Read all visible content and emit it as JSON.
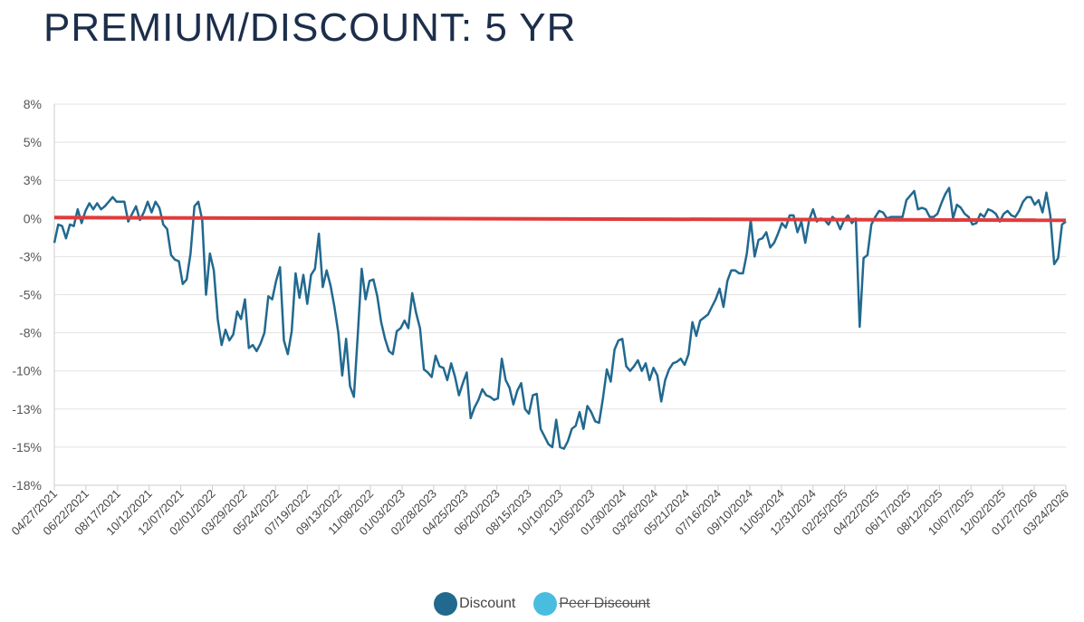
{
  "chart_data": {
    "type": "line",
    "title": "PREMIUM/DISCOUNT: 5 YR",
    "yticks": [
      "8%",
      "5%",
      "3%",
      "0%",
      "-3%",
      "-5%",
      "-8%",
      "-10%",
      "-13%",
      "-15%",
      "-18%"
    ],
    "ylim": [
      -17.5,
      7.5
    ],
    "xticks": [
      "04/27/2021",
      "06/22/2021",
      "08/17/2021",
      "10/12/2021",
      "12/07/2021",
      "02/01/2022",
      "03/29/2022",
      "05/24/2022",
      "07/19/2022",
      "09/13/2022",
      "11/08/2022",
      "01/03/2023",
      "02/28/2023",
      "04/25/2023",
      "06/20/2023",
      "08/15/2023",
      "10/10/2023",
      "12/05/2023",
      "01/30/2024",
      "03/26/2024",
      "05/21/2024",
      "07/16/2024",
      "09/10/2024",
      "11/05/2024",
      "12/31/2024",
      "02/25/2025",
      "04/22/2025",
      "06/17/2025",
      "08/12/2025",
      "10/07/2025",
      "12/02/2025",
      "01/27/2026",
      "03/24/2026"
    ],
    "reference_line": {
      "value": 0,
      "color": "#e03b3b"
    },
    "series": [
      {
        "name": "Discount",
        "color": "#21698f",
        "visible": true,
        "points": [
          [
            0,
            -1.6
          ],
          [
            0.1,
            -0.4
          ],
          [
            0.2,
            -0.5
          ],
          [
            0.3,
            -1.3
          ],
          [
            0.4,
            -0.4
          ],
          [
            0.5,
            -0.5
          ],
          [
            0.6,
            0.6
          ],
          [
            0.7,
            -0.3
          ],
          [
            0.8,
            0.5
          ],
          [
            0.9,
            1.0
          ],
          [
            1.0,
            0.6
          ],
          [
            1.1,
            1.0
          ],
          [
            1.2,
            0.6
          ],
          [
            1.3,
            0.8
          ],
          [
            1.4,
            1.1
          ],
          [
            1.5,
            1.4
          ],
          [
            1.6,
            1.1
          ],
          [
            1.7,
            1.1
          ],
          [
            1.8,
            1.1
          ],
          [
            1.9,
            -0.2
          ],
          [
            2.0,
            0.3
          ],
          [
            2.1,
            0.8
          ],
          [
            2.2,
            -0.1
          ],
          [
            2.3,
            0.4
          ],
          [
            2.4,
            1.1
          ],
          [
            2.5,
            0.4
          ],
          [
            2.6,
            1.1
          ],
          [
            2.7,
            0.7
          ],
          [
            2.8,
            -0.4
          ],
          [
            2.9,
            -0.7
          ],
          [
            3.0,
            -2.4
          ],
          [
            3.1,
            -2.7
          ],
          [
            3.2,
            -2.8
          ],
          [
            3.3,
            -4.3
          ],
          [
            3.4,
            -4.0
          ],
          [
            3.5,
            -2.3
          ],
          [
            3.6,
            0.8
          ],
          [
            3.7,
            1.1
          ],
          [
            3.8,
            -0.1
          ],
          [
            3.9,
            -5.0
          ],
          [
            4.0,
            -2.3
          ],
          [
            4.1,
            -3.4
          ],
          [
            4.2,
            -6.6
          ],
          [
            4.3,
            -8.3
          ],
          [
            4.4,
            -7.3
          ],
          [
            4.5,
            -8.0
          ],
          [
            4.6,
            -7.6
          ],
          [
            4.7,
            -6.1
          ],
          [
            4.8,
            -6.6
          ],
          [
            4.9,
            -5.3
          ],
          [
            5.0,
            -8.5
          ],
          [
            5.1,
            -8.3
          ],
          [
            5.2,
            -8.7
          ],
          [
            5.3,
            -8.2
          ],
          [
            5.4,
            -7.5
          ],
          [
            5.5,
            -5.1
          ],
          [
            5.6,
            -5.3
          ],
          [
            5.7,
            -4.1
          ],
          [
            5.8,
            -3.2
          ],
          [
            5.9,
            -8.0
          ],
          [
            6.0,
            -8.9
          ],
          [
            6.1,
            -7.4
          ],
          [
            6.2,
            -3.6
          ],
          [
            6.3,
            -5.2
          ],
          [
            6.4,
            -3.7
          ],
          [
            6.5,
            -5.6
          ],
          [
            6.6,
            -3.7
          ],
          [
            6.7,
            -3.3
          ],
          [
            6.8,
            -1.0
          ],
          [
            6.9,
            -4.5
          ],
          [
            7.0,
            -3.4
          ],
          [
            7.1,
            -4.4
          ],
          [
            7.2,
            -5.8
          ],
          [
            7.3,
            -7.5
          ],
          [
            7.4,
            -10.3
          ],
          [
            7.5,
            -7.9
          ],
          [
            7.6,
            -11.0
          ],
          [
            7.7,
            -11.7
          ],
          [
            7.8,
            -7.6
          ],
          [
            7.9,
            -3.3
          ],
          [
            8.0,
            -5.3
          ],
          [
            8.1,
            -4.1
          ],
          [
            8.2,
            -4.0
          ],
          [
            8.3,
            -5.1
          ],
          [
            8.4,
            -6.8
          ],
          [
            8.5,
            -7.9
          ],
          [
            8.6,
            -8.7
          ],
          [
            8.7,
            -8.9
          ],
          [
            8.8,
            -7.4
          ],
          [
            8.9,
            -7.2
          ],
          [
            9.0,
            -6.7
          ],
          [
            9.1,
            -7.2
          ],
          [
            9.2,
            -4.9
          ],
          [
            9.3,
            -6.2
          ],
          [
            9.4,
            -7.2
          ],
          [
            9.5,
            -9.9
          ],
          [
            9.6,
            -10.1
          ],
          [
            9.7,
            -10.4
          ],
          [
            9.8,
            -9.0
          ],
          [
            9.9,
            -9.7
          ],
          [
            10.0,
            -9.8
          ],
          [
            10.1,
            -10.6
          ],
          [
            10.2,
            -9.5
          ],
          [
            10.3,
            -10.4
          ],
          [
            10.4,
            -11.6
          ],
          [
            10.5,
            -10.8
          ],
          [
            10.6,
            -10.1
          ],
          [
            10.7,
            -13.1
          ],
          [
            10.8,
            -12.4
          ],
          [
            10.9,
            -11.9
          ],
          [
            11.0,
            -11.2
          ],
          [
            11.1,
            -11.6
          ],
          [
            11.2,
            -11.7
          ],
          [
            11.3,
            -11.9
          ],
          [
            11.4,
            -11.8
          ],
          [
            11.5,
            -9.2
          ],
          [
            11.6,
            -10.6
          ],
          [
            11.7,
            -11.1
          ],
          [
            11.8,
            -12.2
          ],
          [
            11.9,
            -11.3
          ],
          [
            12.0,
            -10.8
          ],
          [
            12.1,
            -12.5
          ],
          [
            12.2,
            -12.8
          ],
          [
            12.3,
            -11.6
          ],
          [
            12.4,
            -11.5
          ],
          [
            12.5,
            -13.8
          ],
          [
            12.6,
            -14.3
          ],
          [
            12.7,
            -14.8
          ],
          [
            12.8,
            -15.0
          ],
          [
            12.9,
            -13.2
          ],
          [
            13.0,
            -15.0
          ],
          [
            13.1,
            -15.1
          ],
          [
            13.2,
            -14.6
          ],
          [
            13.3,
            -13.8
          ],
          [
            13.4,
            -13.6
          ],
          [
            13.5,
            -12.7
          ],
          [
            13.6,
            -13.8
          ],
          [
            13.7,
            -12.3
          ],
          [
            13.8,
            -12.7
          ],
          [
            13.9,
            -13.3
          ],
          [
            14.0,
            -13.4
          ],
          [
            14.1,
            -11.8
          ],
          [
            14.2,
            -9.9
          ],
          [
            14.3,
            -10.7
          ],
          [
            14.4,
            -8.6
          ],
          [
            14.5,
            -8.0
          ],
          [
            14.6,
            -7.9
          ],
          [
            14.7,
            -9.7
          ],
          [
            14.8,
            -10.0
          ],
          [
            14.9,
            -9.7
          ],
          [
            15.0,
            -9.3
          ],
          [
            15.1,
            -10.0
          ],
          [
            15.2,
            -9.5
          ],
          [
            15.3,
            -10.6
          ],
          [
            15.4,
            -9.8
          ],
          [
            15.5,
            -10.3
          ],
          [
            15.6,
            -12.0
          ],
          [
            15.7,
            -10.6
          ],
          [
            15.8,
            -9.9
          ],
          [
            15.9,
            -9.5
          ],
          [
            16.0,
            -9.4
          ],
          [
            16.1,
            -9.2
          ],
          [
            16.2,
            -9.6
          ],
          [
            16.3,
            -8.9
          ],
          [
            16.4,
            -6.8
          ],
          [
            16.5,
            -7.7
          ],
          [
            16.6,
            -6.7
          ],
          [
            16.7,
            -6.5
          ],
          [
            16.8,
            -6.3
          ],
          [
            16.9,
            -5.8
          ],
          [
            17.0,
            -5.3
          ],
          [
            17.1,
            -4.6
          ],
          [
            17.2,
            -5.8
          ],
          [
            17.3,
            -4.1
          ],
          [
            17.4,
            -3.4
          ],
          [
            17.5,
            -3.4
          ],
          [
            17.6,
            -3.6
          ],
          [
            17.7,
            -3.6
          ],
          [
            17.8,
            -2.3
          ],
          [
            17.9,
            -0.1
          ],
          [
            18.0,
            -2.5
          ],
          [
            18.1,
            -1.4
          ],
          [
            18.2,
            -1.3
          ],
          [
            18.3,
            -0.9
          ],
          [
            18.4,
            -1.9
          ],
          [
            18.5,
            -1.6
          ],
          [
            18.6,
            -1.0
          ],
          [
            18.7,
            -0.3
          ],
          [
            18.8,
            -0.6
          ],
          [
            18.9,
            0.2
          ],
          [
            19.0,
            0.2
          ],
          [
            19.1,
            -0.9
          ],
          [
            19.2,
            -0.2
          ],
          [
            19.3,
            -1.6
          ],
          [
            19.4,
            -0.1
          ],
          [
            19.5,
            0.6
          ],
          [
            19.6,
            -0.2
          ],
          [
            19.7,
            0.0
          ],
          [
            19.8,
            -0.1
          ],
          [
            19.9,
            -0.4
          ],
          [
            20.0,
            0.1
          ],
          [
            20.1,
            -0.1
          ],
          [
            20.2,
            -0.7
          ],
          [
            20.3,
            -0.1
          ],
          [
            20.4,
            0.2
          ],
          [
            20.5,
            -0.3
          ],
          [
            20.6,
            0.0
          ],
          [
            20.7,
            -7.1
          ],
          [
            20.8,
            -2.6
          ],
          [
            20.9,
            -2.4
          ],
          [
            21.0,
            -0.4
          ],
          [
            21.1,
            0.1
          ],
          [
            21.2,
            0.5
          ],
          [
            21.3,
            0.4
          ],
          [
            21.4,
            0.0
          ],
          [
            21.5,
            0.1
          ],
          [
            21.6,
            0.1
          ],
          [
            21.7,
            0.1
          ],
          [
            21.8,
            0.1
          ],
          [
            21.9,
            1.2
          ],
          [
            22.0,
            1.5
          ],
          [
            22.1,
            1.8
          ],
          [
            22.2,
            0.6
          ],
          [
            22.3,
            0.7
          ],
          [
            22.4,
            0.6
          ],
          [
            22.5,
            0.1
          ],
          [
            22.6,
            0.1
          ],
          [
            22.7,
            0.3
          ],
          [
            22.8,
            1.0
          ],
          [
            22.9,
            1.6
          ],
          [
            23.0,
            2.0
          ],
          [
            23.1,
            0.0
          ],
          [
            23.2,
            0.9
          ],
          [
            23.3,
            0.7
          ],
          [
            23.4,
            0.3
          ],
          [
            23.5,
            0.1
          ],
          [
            23.6,
            -0.4
          ],
          [
            23.7,
            -0.3
          ],
          [
            23.8,
            0.3
          ],
          [
            23.9,
            0.1
          ],
          [
            24.0,
            0.6
          ],
          [
            24.1,
            0.5
          ],
          [
            24.2,
            0.3
          ],
          [
            24.3,
            -0.2
          ],
          [
            24.4,
            0.3
          ],
          [
            24.5,
            0.5
          ],
          [
            24.6,
            0.2
          ],
          [
            24.7,
            0.1
          ],
          [
            24.8,
            0.5
          ],
          [
            24.9,
            1.1
          ],
          [
            25.0,
            1.4
          ],
          [
            25.1,
            1.4
          ],
          [
            25.2,
            0.9
          ],
          [
            25.3,
            1.2
          ],
          [
            25.4,
            0.4
          ],
          [
            25.5,
            1.7
          ],
          [
            25.6,
            0.2
          ],
          [
            25.7,
            -3.0
          ],
          [
            25.8,
            -2.6
          ],
          [
            25.9,
            -0.4
          ],
          [
            26.0,
            -0.2
          ]
        ]
      },
      {
        "name": "Peer Discount",
        "color": "#48bde0",
        "visible": false,
        "points": []
      }
    ]
  }
}
